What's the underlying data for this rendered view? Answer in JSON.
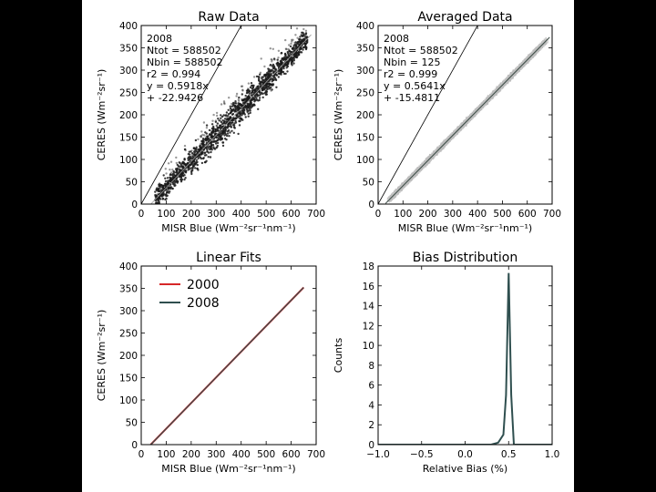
{
  "colors": {
    "background": "#000000",
    "panel": "#ffffff",
    "raw_points": "#1a1a1a",
    "averaged_points": "#bdbdbd",
    "fit_line": "#3a4a44",
    "line_2000": "#d62728",
    "line_2008": "#2f4f4f",
    "bias_line": "#2f4f4f",
    "identity_line": "#000000"
  },
  "chart_data": [
    {
      "type": "scatter",
      "title": "Raw Data",
      "xlabel": "MISR Blue (Wm⁻²sr⁻¹nm⁻¹)",
      "ylabel": "CERES (Wm⁻²sr⁻¹)",
      "xlim": [
        0,
        700
      ],
      "ylim": [
        0,
        400
      ],
      "xticks": [
        "0",
        "100",
        "200",
        "300",
        "400",
        "500",
        "600",
        "700"
      ],
      "yticks": [
        "0",
        "50",
        "100",
        "150",
        "200",
        "250",
        "300",
        "350",
        "400"
      ],
      "annotation": [
        "2008",
        "Ntot =  588502",
        "Nbin = 588502",
        "r2 = 0.994",
        "y = 0.5918x",
        "  + -22.9426"
      ],
      "fit": {
        "slope": 0.5918,
        "intercept": -22.9426
      },
      "year": "2008",
      "ntot": 588502,
      "nbin": 588502,
      "r2": 0.994,
      "x_range": [
        55,
        665
      ],
      "grid": false
    },
    {
      "type": "scatter",
      "title": "Averaged Data",
      "xlabel": "MISR Blue (Wm⁻²sr⁻¹nm⁻¹)",
      "ylabel": "CERES (Wm⁻²sr⁻¹)",
      "xlim": [
        0,
        700
      ],
      "ylim": [
        0,
        400
      ],
      "xticks": [
        "0",
        "100",
        "200",
        "300",
        "400",
        "500",
        "600",
        "700"
      ],
      "yticks": [
        "0",
        "50",
        "100",
        "150",
        "200",
        "250",
        "300",
        "350",
        "400"
      ],
      "annotation": [
        "2008",
        "Ntot =  588502",
        "Nbin = 125",
        "r2 = 0.999",
        "y = 0.5641x",
        "  + -15.4811"
      ],
      "fit": {
        "slope": 0.5641,
        "intercept": -15.4811
      },
      "year": "2008",
      "ntot": 588502,
      "nbin": 125,
      "r2": 0.999,
      "x_range": [
        45,
        675
      ],
      "grid": false
    },
    {
      "type": "line",
      "title": "Linear Fits",
      "xlabel": "MISR Blue (Wm⁻²sr⁻¹nm⁻¹)",
      "ylabel": "CERES (Wm⁻²sr⁻¹)",
      "xlim": [
        0,
        700
      ],
      "ylim": [
        0,
        400
      ],
      "xticks": [
        "0",
        "100",
        "200",
        "300",
        "400",
        "500",
        "600",
        "700"
      ],
      "yticks": [
        "0",
        "50",
        "100",
        "150",
        "200",
        "250",
        "300",
        "350",
        "400"
      ],
      "legend_position": "top-left",
      "series": [
        {
          "name": "2000",
          "x": [
            38,
            650
          ],
          "y": [
            0,
            352
          ]
        },
        {
          "name": "2008",
          "x": [
            38,
            650
          ],
          "y": [
            0,
            352
          ]
        }
      ],
      "grid": false
    },
    {
      "type": "line",
      "title": "Bias Distribution",
      "xlabel": "Relative Bias (%)",
      "ylabel": "Counts",
      "xlim": [
        -1.0,
        1.0
      ],
      "ylim": [
        0,
        18
      ],
      "xticks": [
        "−1.0",
        "−0.5",
        "0.0",
        "0.5",
        "1.0"
      ],
      "yticks": [
        "0",
        "2",
        "4",
        "6",
        "8",
        "10",
        "12",
        "14",
        "16",
        "18"
      ],
      "series": [
        {
          "x": [
            -1.0,
            0.3,
            0.38,
            0.44,
            0.47,
            0.5,
            0.53,
            0.56,
            1.0
          ],
          "y": [
            0,
            0,
            0.2,
            1,
            5,
            17.3,
            5,
            0,
            0
          ]
        }
      ],
      "grid": false
    }
  ]
}
